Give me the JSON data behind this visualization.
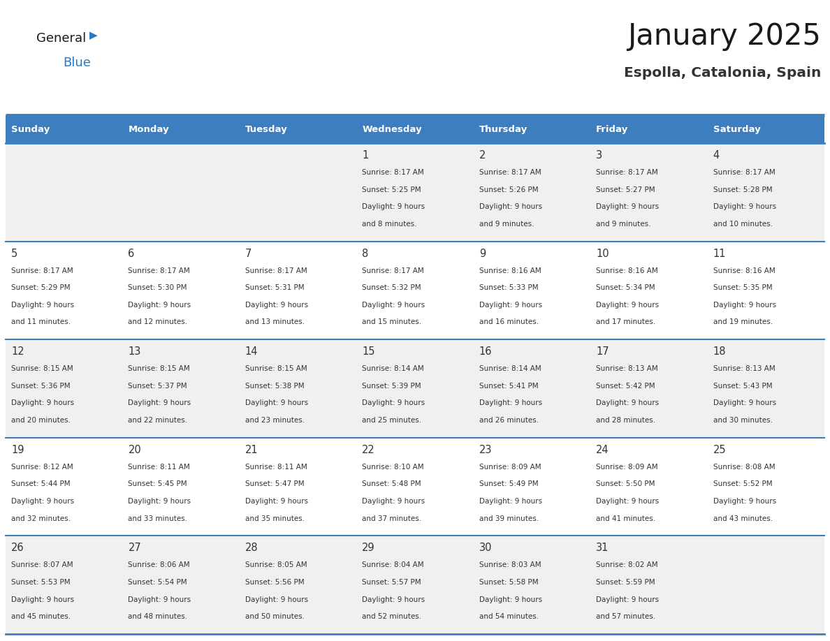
{
  "title": "January 2025",
  "subtitle": "Espolla, Catalonia, Spain",
  "header_color": "#3d7ebf",
  "header_text_color": "#ffffff",
  "cell_bg_even": "#f0f0f0",
  "cell_bg_odd": "#ffffff",
  "day_names": [
    "Sunday",
    "Monday",
    "Tuesday",
    "Wednesday",
    "Thursday",
    "Friday",
    "Saturday"
  ],
  "title_color": "#1a1a1a",
  "subtitle_color": "#333333",
  "line_color": "#3d7ebf",
  "text_color": "#333333",
  "logo_general_color": "#1a1a1a",
  "logo_blue_color": "#2878bf",
  "days": [
    {
      "day": 1,
      "col": 3,
      "row": 0,
      "sunrise": "8:17 AM",
      "sunset": "5:25 PM",
      "daylight": "9 hours and 8 minutes."
    },
    {
      "day": 2,
      "col": 4,
      "row": 0,
      "sunrise": "8:17 AM",
      "sunset": "5:26 PM",
      "daylight": "9 hours and 9 minutes."
    },
    {
      "day": 3,
      "col": 5,
      "row": 0,
      "sunrise": "8:17 AM",
      "sunset": "5:27 PM",
      "daylight": "9 hours and 9 minutes."
    },
    {
      "day": 4,
      "col": 6,
      "row": 0,
      "sunrise": "8:17 AM",
      "sunset": "5:28 PM",
      "daylight": "9 hours and 10 minutes."
    },
    {
      "day": 5,
      "col": 0,
      "row": 1,
      "sunrise": "8:17 AM",
      "sunset": "5:29 PM",
      "daylight": "9 hours and 11 minutes."
    },
    {
      "day": 6,
      "col": 1,
      "row": 1,
      "sunrise": "8:17 AM",
      "sunset": "5:30 PM",
      "daylight": "9 hours and 12 minutes."
    },
    {
      "day": 7,
      "col": 2,
      "row": 1,
      "sunrise": "8:17 AM",
      "sunset": "5:31 PM",
      "daylight": "9 hours and 13 minutes."
    },
    {
      "day": 8,
      "col": 3,
      "row": 1,
      "sunrise": "8:17 AM",
      "sunset": "5:32 PM",
      "daylight": "9 hours and 15 minutes."
    },
    {
      "day": 9,
      "col": 4,
      "row": 1,
      "sunrise": "8:16 AM",
      "sunset": "5:33 PM",
      "daylight": "9 hours and 16 minutes."
    },
    {
      "day": 10,
      "col": 5,
      "row": 1,
      "sunrise": "8:16 AM",
      "sunset": "5:34 PM",
      "daylight": "9 hours and 17 minutes."
    },
    {
      "day": 11,
      "col": 6,
      "row": 1,
      "sunrise": "8:16 AM",
      "sunset": "5:35 PM",
      "daylight": "9 hours and 19 minutes."
    },
    {
      "day": 12,
      "col": 0,
      "row": 2,
      "sunrise": "8:15 AM",
      "sunset": "5:36 PM",
      "daylight": "9 hours and 20 minutes."
    },
    {
      "day": 13,
      "col": 1,
      "row": 2,
      "sunrise": "8:15 AM",
      "sunset": "5:37 PM",
      "daylight": "9 hours and 22 minutes."
    },
    {
      "day": 14,
      "col": 2,
      "row": 2,
      "sunrise": "8:15 AM",
      "sunset": "5:38 PM",
      "daylight": "9 hours and 23 minutes."
    },
    {
      "day": 15,
      "col": 3,
      "row": 2,
      "sunrise": "8:14 AM",
      "sunset": "5:39 PM",
      "daylight": "9 hours and 25 minutes."
    },
    {
      "day": 16,
      "col": 4,
      "row": 2,
      "sunrise": "8:14 AM",
      "sunset": "5:41 PM",
      "daylight": "9 hours and 26 minutes."
    },
    {
      "day": 17,
      "col": 5,
      "row": 2,
      "sunrise": "8:13 AM",
      "sunset": "5:42 PM",
      "daylight": "9 hours and 28 minutes."
    },
    {
      "day": 18,
      "col": 6,
      "row": 2,
      "sunrise": "8:13 AM",
      "sunset": "5:43 PM",
      "daylight": "9 hours and 30 minutes."
    },
    {
      "day": 19,
      "col": 0,
      "row": 3,
      "sunrise": "8:12 AM",
      "sunset": "5:44 PM",
      "daylight": "9 hours and 32 minutes."
    },
    {
      "day": 20,
      "col": 1,
      "row": 3,
      "sunrise": "8:11 AM",
      "sunset": "5:45 PM",
      "daylight": "9 hours and 33 minutes."
    },
    {
      "day": 21,
      "col": 2,
      "row": 3,
      "sunrise": "8:11 AM",
      "sunset": "5:47 PM",
      "daylight": "9 hours and 35 minutes."
    },
    {
      "day": 22,
      "col": 3,
      "row": 3,
      "sunrise": "8:10 AM",
      "sunset": "5:48 PM",
      "daylight": "9 hours and 37 minutes."
    },
    {
      "day": 23,
      "col": 4,
      "row": 3,
      "sunrise": "8:09 AM",
      "sunset": "5:49 PM",
      "daylight": "9 hours and 39 minutes."
    },
    {
      "day": 24,
      "col": 5,
      "row": 3,
      "sunrise": "8:09 AM",
      "sunset": "5:50 PM",
      "daylight": "9 hours and 41 minutes."
    },
    {
      "day": 25,
      "col": 6,
      "row": 3,
      "sunrise": "8:08 AM",
      "sunset": "5:52 PM",
      "daylight": "9 hours and 43 minutes."
    },
    {
      "day": 26,
      "col": 0,
      "row": 4,
      "sunrise": "8:07 AM",
      "sunset": "5:53 PM",
      "daylight": "9 hours and 45 minutes."
    },
    {
      "day": 27,
      "col": 1,
      "row": 4,
      "sunrise": "8:06 AM",
      "sunset": "5:54 PM",
      "daylight": "9 hours and 48 minutes."
    },
    {
      "day": 28,
      "col": 2,
      "row": 4,
      "sunrise": "8:05 AM",
      "sunset": "5:56 PM",
      "daylight": "9 hours and 50 minutes."
    },
    {
      "day": 29,
      "col": 3,
      "row": 4,
      "sunrise": "8:04 AM",
      "sunset": "5:57 PM",
      "daylight": "9 hours and 52 minutes."
    },
    {
      "day": 30,
      "col": 4,
      "row": 4,
      "sunrise": "8:03 AM",
      "sunset": "5:58 PM",
      "daylight": "9 hours and 54 minutes."
    },
    {
      "day": 31,
      "col": 5,
      "row": 4,
      "sunrise": "8:02 AM",
      "sunset": "5:59 PM",
      "daylight": "9 hours and 57 minutes."
    }
  ]
}
